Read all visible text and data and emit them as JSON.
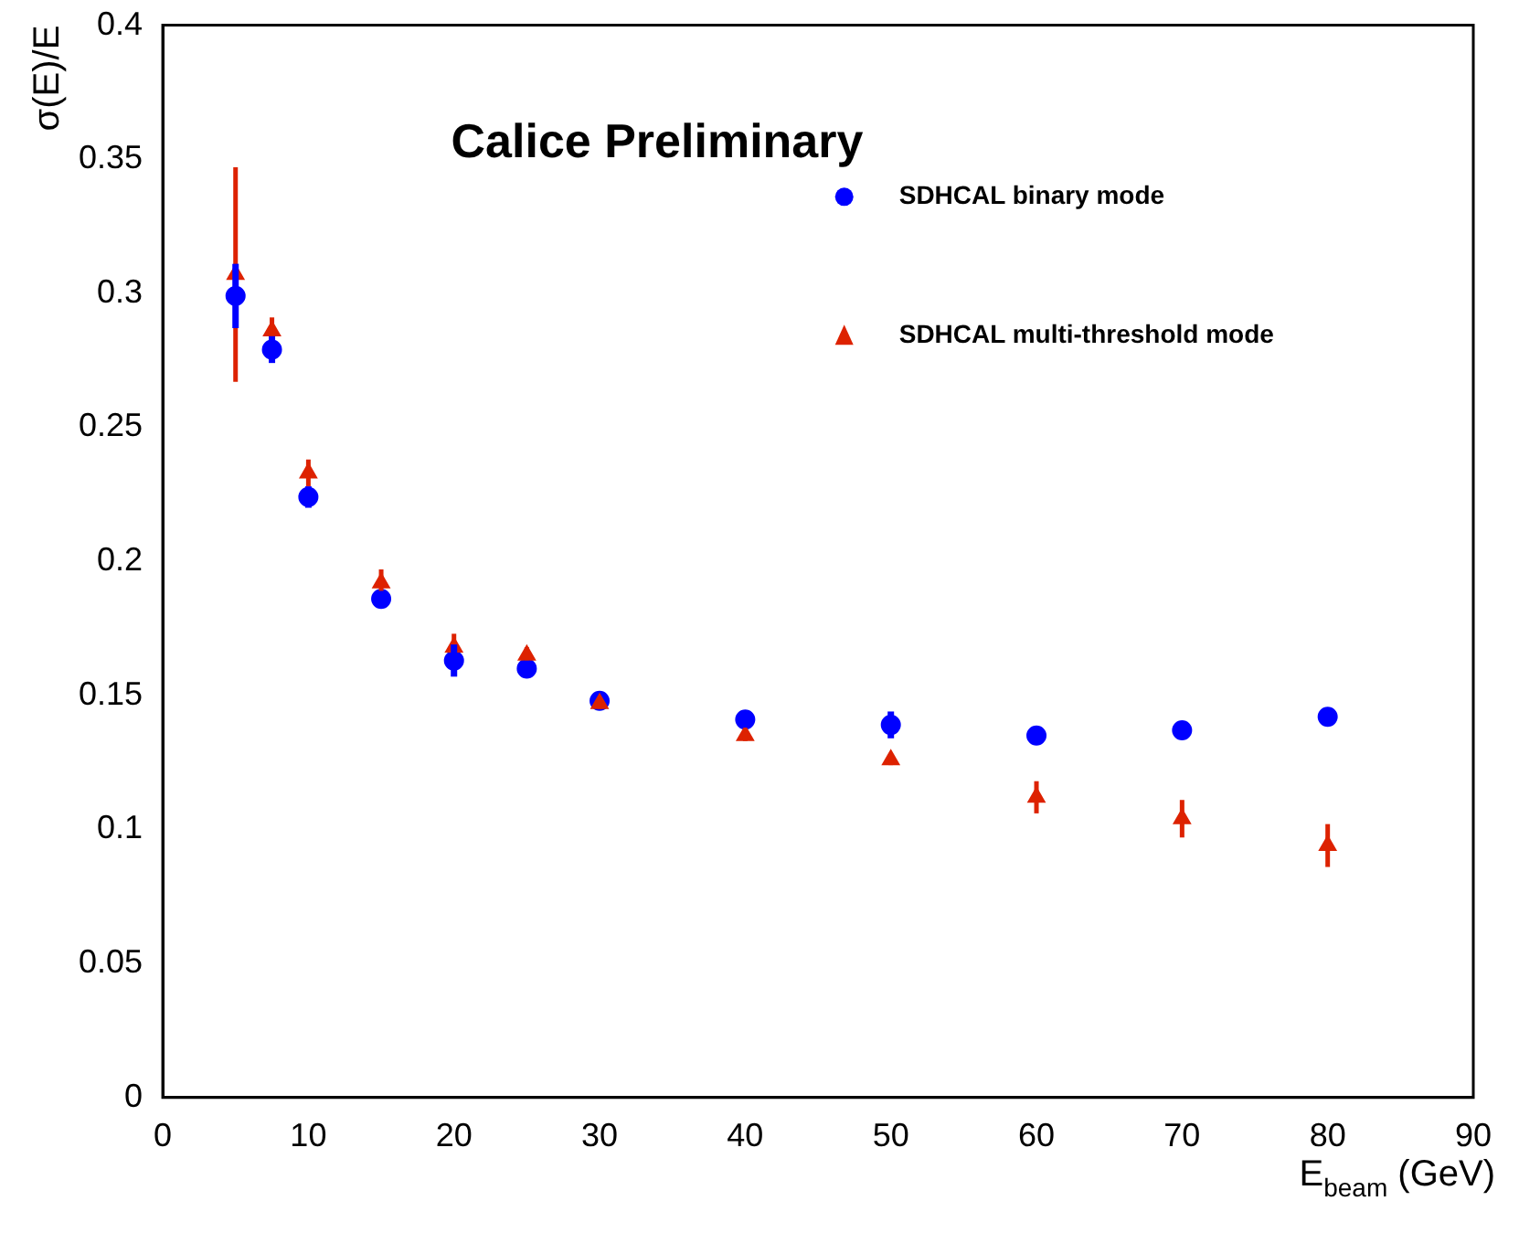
{
  "chart_data": {
    "type": "scatter",
    "xlabel": "E$_{beam}$ (GeV)",
    "ylabel": "σ(E)/E",
    "annotations": [
      "Calice Preliminary"
    ],
    "xlim": [
      0,
      90
    ],
    "xticks": [
      0,
      10,
      20,
      30,
      40,
      50,
      60,
      70,
      80,
      90
    ],
    "ylim": [
      0,
      0.4
    ],
    "yticks": [
      0,
      0.05,
      0.1,
      0.15,
      0.2,
      0.25,
      0.3,
      0.35,
      0.4
    ],
    "grid": false,
    "legend": "top right",
    "series": [
      {
        "name": "SDHCAL binary mode",
        "color": "#0000ff",
        "marker": "circle",
        "x": [
          5,
          7.5,
          10,
          15,
          20,
          25,
          30,
          40,
          50,
          60,
          70,
          80
        ],
        "values": [
          0.299,
          0.279,
          0.224,
          0.186,
          0.163,
          0.16,
          0.148,
          0.141,
          0.139,
          0.135,
          0.137,
          0.142
        ],
        "errors": [
          0.012,
          0.005,
          0.004,
          0.003,
          0.006,
          0.003,
          null,
          0.003,
          0.005,
          0.002,
          0.002,
          0.002
        ]
      },
      {
        "name": "SDHCAL multi-threshold mode",
        "color": "#dd2200",
        "marker": "triangle",
        "x": [
          5,
          7.5,
          10,
          15,
          20,
          25,
          30,
          40,
          50,
          60,
          70,
          80
        ],
        "values": [
          0.307,
          0.286,
          0.233,
          0.192,
          0.168,
          0.165,
          0.147,
          0.135,
          0.126,
          0.112,
          0.104,
          0.094
        ],
        "errors": [
          0.04,
          0.005,
          0.005,
          0.005,
          0.005,
          0.003,
          0.002,
          0.002,
          0.002,
          0.006,
          0.007,
          0.008
        ]
      }
    ]
  }
}
